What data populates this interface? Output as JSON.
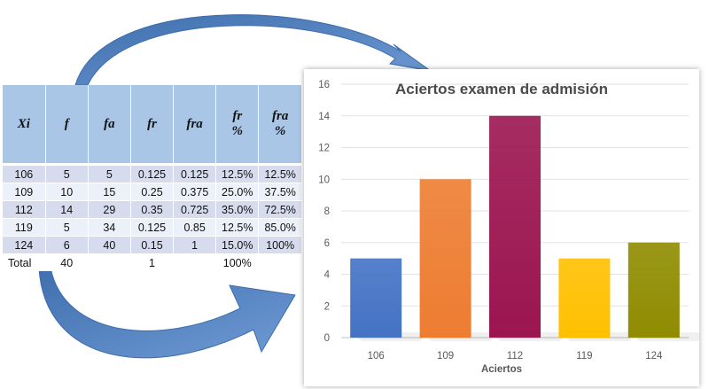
{
  "table": {
    "headers": [
      "Xi",
      "f",
      "fa",
      "fr",
      "fra",
      "fr\n%",
      "fra\n%"
    ],
    "rows": [
      [
        "106",
        "5",
        "5",
        "0.125",
        "0.125",
        "12.5%",
        "12.5%"
      ],
      [
        "109",
        "10",
        "15",
        "0.25",
        "0.375",
        "25.0%",
        "37.5%"
      ],
      [
        "112",
        "14",
        "29",
        "0.35",
        "0.725",
        "35.0%",
        "72.5%"
      ],
      [
        "119",
        "5",
        "34",
        "0.125",
        "0.85",
        "12.5%",
        "85.0%"
      ],
      [
        "124",
        "6",
        "40",
        "0.15",
        "1",
        "15.0%",
        "100%"
      ]
    ],
    "total": [
      "Total",
      "40",
      "",
      "1",
      "",
      "100%",
      ""
    ]
  },
  "chart_data": {
    "type": "bar",
    "title": "Aciertos examen de  admisión",
    "xlabel": "Aciertos",
    "ylabel": "",
    "categories": [
      "106",
      "109",
      "112",
      "119",
      "124"
    ],
    "values": [
      5,
      10,
      14,
      5,
      6
    ],
    "colors": [
      "#4472c4",
      "#ed7d31",
      "#9b1550",
      "#ffc000",
      "#8f8c00"
    ],
    "ylim": [
      0,
      16
    ],
    "yticks": [
      0,
      2,
      4,
      6,
      8,
      10,
      12,
      14,
      16
    ],
    "grid": true,
    "legend": "none"
  },
  "arrows": {
    "color": "#6f9bd4"
  }
}
